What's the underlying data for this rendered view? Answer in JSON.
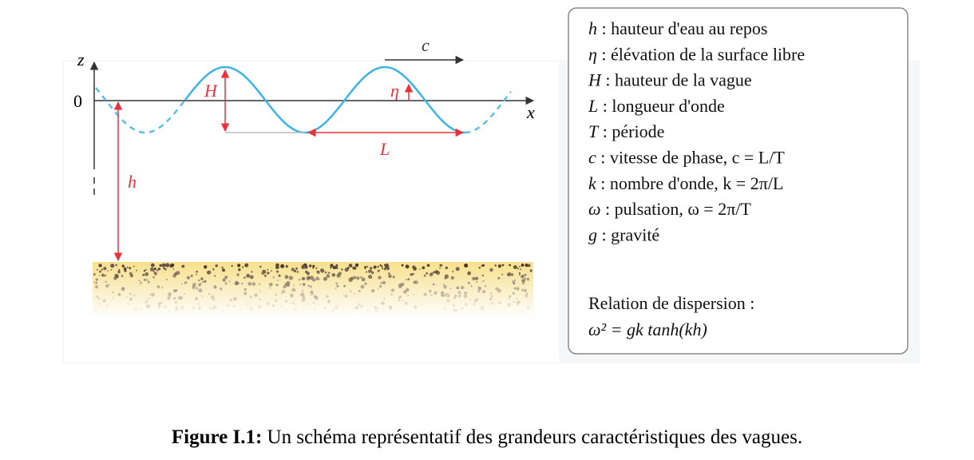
{
  "diagram": {
    "labels": {
      "z": "z",
      "zero": "0",
      "x": "x",
      "c": "c",
      "H": "H",
      "eta": "η",
      "L": "L",
      "h": "h"
    },
    "legend": [
      {
        "symbol": "h",
        "text": " : hauteur d'eau au repos"
      },
      {
        "symbol": "η",
        "text": " : élévation de la surface libre"
      },
      {
        "symbol": "H",
        "text": " : hauteur de la vague"
      },
      {
        "symbol": "L",
        "text": " : longueur d'onde"
      },
      {
        "symbol": "T",
        "text": " : période"
      },
      {
        "symbol": "c",
        "text": " : vitesse de phase, c = L/T"
      },
      {
        "symbol": "k",
        "text": " : nombre d'onde, k = 2π/L"
      },
      {
        "symbol": "ω",
        "text": " : pulsation, ω = 2π/T"
      },
      {
        "symbol": "g",
        "text": " : gravité"
      }
    ],
    "dispersion": {
      "title": "Relation de dispersion :",
      "formula": "ω² = gk tanh(kh)"
    }
  },
  "caption": {
    "label": "Figure I.1:",
    "text": " Un schéma représentatif des grandeurs caractéristiques des vagues."
  }
}
